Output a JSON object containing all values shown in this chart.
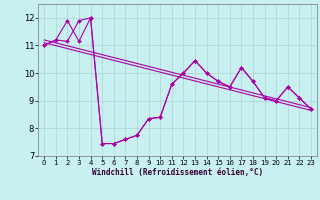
{
  "xlabel": "Windchill (Refroidissement éolien,°C)",
  "bg_color": "#c8f0f0",
  "line_color": "#aa00aa",
  "grid_color": "#b0d8d8",
  "xlim": [
    -0.5,
    23.5
  ],
  "ylim": [
    7.0,
    12.5
  ],
  "yticks": [
    7,
    8,
    9,
    10,
    11,
    12
  ],
  "xticks": [
    0,
    1,
    2,
    3,
    4,
    5,
    6,
    7,
    8,
    9,
    10,
    11,
    12,
    13,
    14,
    15,
    16,
    17,
    18,
    19,
    20,
    21,
    22,
    23
  ],
  "series1_x": [
    0,
    1,
    2,
    3,
    4,
    5,
    6,
    7,
    8,
    9,
    10,
    11,
    12,
    13,
    14,
    15,
    16,
    17,
    18,
    19,
    20,
    21,
    22,
    23
  ],
  "series1_y": [
    11.0,
    11.2,
    11.9,
    11.15,
    12.0,
    7.45,
    7.45,
    7.6,
    7.75,
    8.35,
    8.4,
    9.6,
    10.0,
    10.45,
    10.0,
    9.7,
    9.5,
    10.2,
    9.7,
    9.1,
    9.0,
    9.5,
    9.1,
    8.7
  ],
  "series2_x": [
    0,
    1,
    2,
    3,
    4,
    5,
    6,
    7,
    8,
    9,
    10,
    11,
    12,
    13,
    14,
    15,
    16,
    17,
    18,
    19,
    20,
    21,
    22,
    23
  ],
  "series2_y": [
    11.0,
    11.2,
    11.15,
    11.9,
    12.0,
    7.45,
    7.45,
    7.6,
    7.75,
    8.35,
    8.4,
    9.6,
    10.0,
    10.45,
    10.0,
    9.7,
    9.5,
    10.2,
    9.7,
    9.1,
    9.0,
    9.5,
    9.1,
    8.7
  ],
  "trend1_x": [
    0,
    23
  ],
  "trend1_y": [
    11.1,
    8.65
  ],
  "trend2_x": [
    0,
    23
  ],
  "trend2_y": [
    11.2,
    8.75
  ]
}
